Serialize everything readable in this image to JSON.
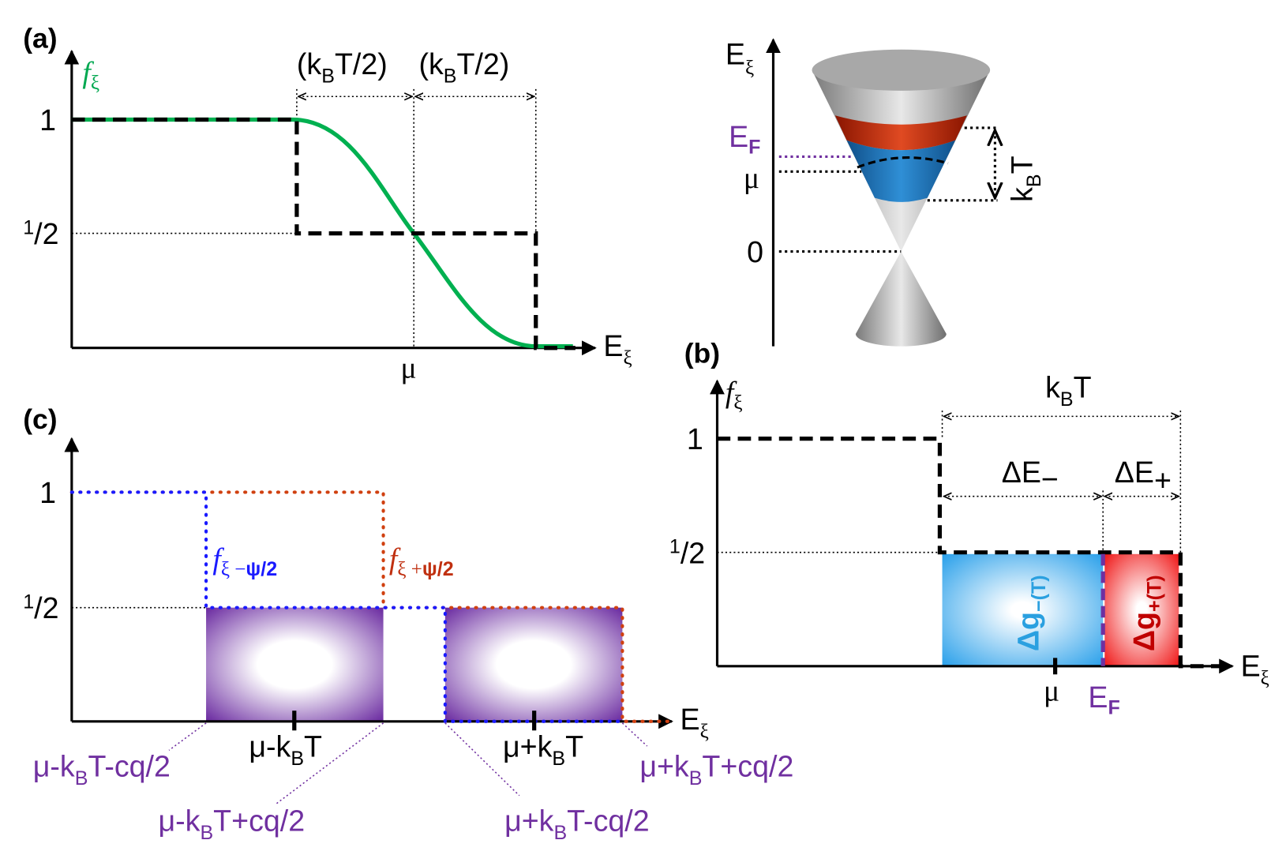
{
  "panel_a": {
    "label": "(a)",
    "y_axis": [
      "f",
      "ξ"
    ],
    "x_axis": [
      "E",
      "ξ"
    ],
    "tick_1": "1",
    "tick_half": [
      "1",
      "/2"
    ],
    "half_width_left": [
      "(k",
      "B",
      "T/2)"
    ],
    "half_width_right": [
      "(k",
      "B",
      "T/2)"
    ],
    "mu": "μ"
  },
  "cone": {
    "axis": [
      "E",
      "ξ"
    ],
    "fermi": [
      "E",
      "F"
    ],
    "mu": "μ",
    "zero": "0",
    "width": [
      "k",
      "B",
      "T"
    ]
  },
  "panel_b": {
    "label": "(b)",
    "y_axis": [
      "f",
      "ξ"
    ],
    "x_axis": [
      "E",
      "ξ"
    ],
    "tick_1": "1",
    "tick_half": [
      "1",
      "/2"
    ],
    "width": [
      "k",
      "B",
      "T"
    ],
    "delta_minus": [
      "ΔE",
      "−"
    ],
    "delta_plus": [
      "ΔE",
      "+"
    ],
    "dg_minus": [
      "Δg",
      "−(T)"
    ],
    "dg_plus": [
      "Δg",
      "+(T)"
    ],
    "mu": "μ",
    "fermi": [
      "E",
      "F"
    ]
  },
  "panel_c": {
    "label": "(c)",
    "x_axis": [
      "E",
      "ξ"
    ],
    "tick_1": "1",
    "tick_half": [
      "1",
      "/2"
    ],
    "f_minus": [
      "f",
      "ξ −",
      "ψ/2"
    ],
    "f_plus": [
      "f",
      "ξ +",
      "ψ/2"
    ],
    "mu_minus": [
      "μ-k",
      "B",
      "T"
    ],
    "mu_plus": [
      "μ+k",
      "B",
      "T"
    ],
    "edges": [
      [
        "μ-k",
        "B",
        "T-cq/2"
      ],
      [
        "μ-k",
        "B",
        "T+cq/2"
      ],
      [
        "μ+k",
        "B",
        "T-cq/2"
      ],
      [
        "μ+k",
        "B",
        "T+cq/2"
      ]
    ]
  }
}
